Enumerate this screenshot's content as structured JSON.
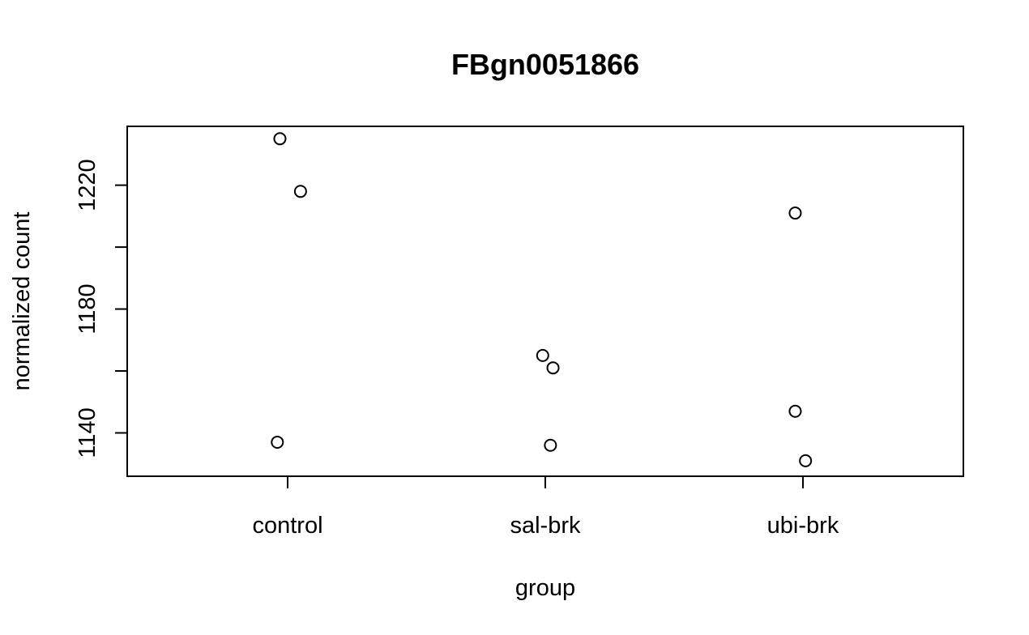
{
  "chart_data": {
    "type": "scatter",
    "title": "FBgn0051866",
    "xlabel": "group",
    "ylabel": "normalized count",
    "categories": [
      "control",
      "sal-brk",
      "ubi-brk"
    ],
    "y_ticks": [
      1140,
      1180,
      1220
    ],
    "y_ticks_unlabeled": [
      1160,
      1200
    ],
    "ylim": [
      1126,
      1239
    ],
    "grid": false,
    "legend": "none",
    "points": [
      {
        "group": "control",
        "x": 0.97,
        "y": 1235
      },
      {
        "group": "control",
        "x": 1.05,
        "y": 1218
      },
      {
        "group": "control",
        "x": 0.96,
        "y": 1137
      },
      {
        "group": "sal-brk",
        "x": 1.99,
        "y": 1165
      },
      {
        "group": "sal-brk",
        "x": 2.03,
        "y": 1161
      },
      {
        "group": "sal-brk",
        "x": 2.02,
        "y": 1136
      },
      {
        "group": "ubi-brk",
        "x": 2.97,
        "y": 1211
      },
      {
        "group": "ubi-brk",
        "x": 2.97,
        "y": 1147
      },
      {
        "group": "ubi-brk",
        "x": 3.01,
        "y": 1131
      }
    ]
  }
}
